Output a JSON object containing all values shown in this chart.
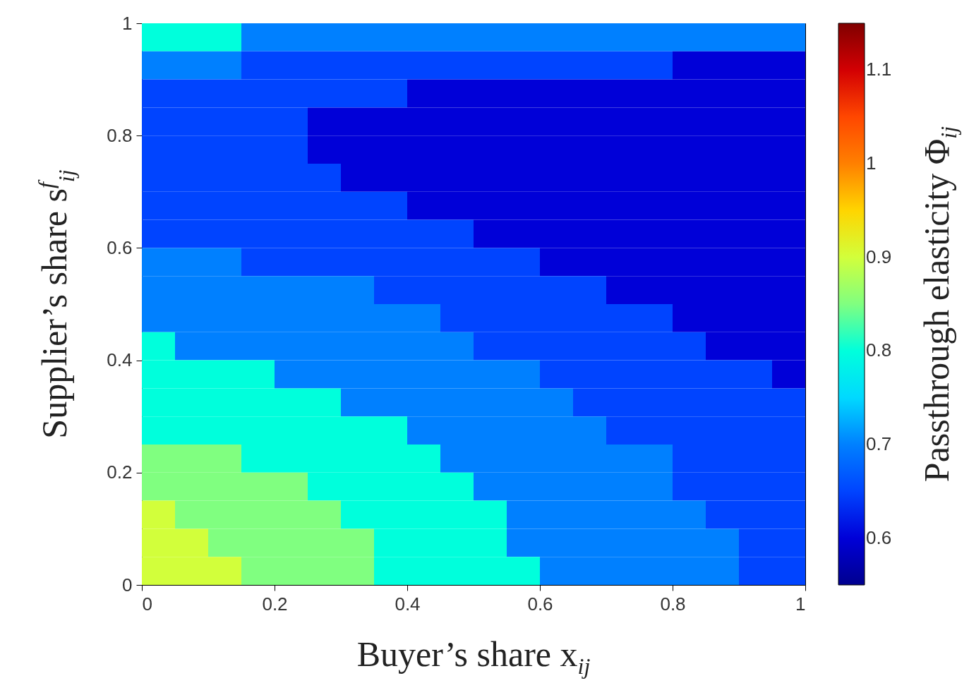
{
  "chart_data": {
    "type": "heatmap",
    "xlabel": "Buyer’s share x$_{ij}$",
    "ylabel": "Supplier’s share s$^{f}$$_{ij}$",
    "clabel": "Passthrough elasticity Φ$_{ij}$",
    "x": [
      0.025,
      0.075,
      0.125,
      0.175,
      0.225,
      0.275,
      0.325,
      0.375,
      0.425,
      0.475,
      0.525,
      0.575,
      0.625,
      0.675,
      0.725,
      0.775,
      0.825,
      0.875,
      0.925,
      0.975
    ],
    "y": [
      0.975,
      0.925,
      0.875,
      0.825,
      0.775,
      0.725,
      0.675,
      0.625,
      0.575,
      0.525,
      0.475,
      0.425,
      0.375,
      0.325,
      0.275,
      0.225,
      0.175,
      0.125,
      0.075,
      0.025
    ],
    "cells": [
      [
        0.8,
        0.8,
        0.8,
        0.7,
        0.7,
        0.7,
        0.7,
        0.7,
        0.7,
        0.7,
        0.7,
        0.7,
        0.7,
        0.7,
        0.7,
        0.7,
        0.7,
        0.7,
        0.7,
        0.7
      ],
      [
        0.7,
        0.7,
        0.7,
        0.65,
        0.65,
        0.65,
        0.65,
        0.65,
        0.65,
        0.65,
        0.65,
        0.65,
        0.65,
        0.65,
        0.65,
        0.65,
        0.6,
        0.6,
        0.6,
        0.6
      ],
      [
        0.65,
        0.65,
        0.65,
        0.65,
        0.65,
        0.65,
        0.65,
        0.65,
        0.6,
        0.6,
        0.6,
        0.6,
        0.6,
        0.6,
        0.6,
        0.6,
        0.6,
        0.6,
        0.6,
        0.6
      ],
      [
        0.65,
        0.65,
        0.65,
        0.65,
        0.65,
        0.6,
        0.6,
        0.6,
        0.6,
        0.6,
        0.6,
        0.6,
        0.6,
        0.6,
        0.6,
        0.6,
        0.6,
        0.6,
        0.6,
        0.6
      ],
      [
        0.65,
        0.65,
        0.65,
        0.65,
        0.65,
        0.6,
        0.6,
        0.6,
        0.6,
        0.6,
        0.6,
        0.6,
        0.6,
        0.6,
        0.6,
        0.6,
        0.6,
        0.6,
        0.6,
        0.6
      ],
      [
        0.65,
        0.65,
        0.65,
        0.65,
        0.65,
        0.65,
        0.6,
        0.6,
        0.6,
        0.6,
        0.6,
        0.6,
        0.6,
        0.6,
        0.6,
        0.6,
        0.6,
        0.6,
        0.6,
        0.6
      ],
      [
        0.65,
        0.65,
        0.65,
        0.65,
        0.65,
        0.65,
        0.65,
        0.65,
        0.6,
        0.6,
        0.6,
        0.6,
        0.6,
        0.6,
        0.6,
        0.6,
        0.6,
        0.6,
        0.6,
        0.6
      ],
      [
        0.65,
        0.65,
        0.65,
        0.65,
        0.65,
        0.65,
        0.65,
        0.65,
        0.65,
        0.65,
        0.6,
        0.6,
        0.6,
        0.6,
        0.6,
        0.6,
        0.6,
        0.6,
        0.6,
        0.6
      ],
      [
        0.7,
        0.7,
        0.7,
        0.65,
        0.65,
        0.65,
        0.65,
        0.65,
        0.65,
        0.65,
        0.65,
        0.65,
        0.6,
        0.6,
        0.6,
        0.6,
        0.6,
        0.6,
        0.6,
        0.6
      ],
      [
        0.7,
        0.7,
        0.7,
        0.7,
        0.7,
        0.7,
        0.7,
        0.65,
        0.65,
        0.65,
        0.65,
        0.65,
        0.65,
        0.65,
        0.6,
        0.6,
        0.6,
        0.6,
        0.6,
        0.6
      ],
      [
        0.7,
        0.7,
        0.7,
        0.7,
        0.7,
        0.7,
        0.7,
        0.7,
        0.7,
        0.65,
        0.65,
        0.65,
        0.65,
        0.65,
        0.65,
        0.65,
        0.6,
        0.6,
        0.6,
        0.6
      ],
      [
        0.8,
        0.7,
        0.7,
        0.7,
        0.7,
        0.7,
        0.7,
        0.7,
        0.7,
        0.7,
        0.65,
        0.65,
        0.65,
        0.65,
        0.65,
        0.65,
        0.65,
        0.6,
        0.6,
        0.6
      ],
      [
        0.8,
        0.8,
        0.8,
        0.8,
        0.7,
        0.7,
        0.7,
        0.7,
        0.7,
        0.7,
        0.7,
        0.7,
        0.65,
        0.65,
        0.65,
        0.65,
        0.65,
        0.65,
        0.65,
        0.6
      ],
      [
        0.8,
        0.8,
        0.8,
        0.8,
        0.8,
        0.8,
        0.7,
        0.7,
        0.7,
        0.7,
        0.7,
        0.7,
        0.7,
        0.65,
        0.65,
        0.65,
        0.65,
        0.65,
        0.65,
        0.65
      ],
      [
        0.8,
        0.8,
        0.8,
        0.8,
        0.8,
        0.8,
        0.8,
        0.8,
        0.7,
        0.7,
        0.7,
        0.7,
        0.7,
        0.7,
        0.65,
        0.65,
        0.65,
        0.65,
        0.65,
        0.65
      ],
      [
        0.85,
        0.85,
        0.85,
        0.8,
        0.8,
        0.8,
        0.8,
        0.8,
        0.8,
        0.7,
        0.7,
        0.7,
        0.7,
        0.7,
        0.7,
        0.7,
        0.65,
        0.65,
        0.65,
        0.65
      ],
      [
        0.85,
        0.85,
        0.85,
        0.85,
        0.85,
        0.8,
        0.8,
        0.8,
        0.8,
        0.8,
        0.7,
        0.7,
        0.7,
        0.7,
        0.7,
        0.7,
        0.65,
        0.65,
        0.65,
        0.65
      ],
      [
        0.9,
        0.85,
        0.85,
        0.85,
        0.85,
        0.85,
        0.8,
        0.8,
        0.8,
        0.8,
        0.8,
        0.7,
        0.7,
        0.7,
        0.7,
        0.7,
        0.7,
        0.65,
        0.65,
        0.65
      ],
      [
        0.9,
        0.9,
        0.85,
        0.85,
        0.85,
        0.85,
        0.85,
        0.8,
        0.8,
        0.8,
        0.8,
        0.7,
        0.7,
        0.7,
        0.7,
        0.7,
        0.7,
        0.7,
        0.65,
        0.65
      ],
      [
        0.9,
        0.9,
        0.9,
        0.85,
        0.85,
        0.85,
        0.85,
        0.8,
        0.8,
        0.8,
        0.8,
        0.8,
        0.7,
        0.7,
        0.7,
        0.7,
        0.7,
        0.7,
        0.65,
        0.65
      ]
    ],
    "xlim": [
      0,
      1
    ],
    "ylim": [
      0,
      1
    ],
    "xticks": [
      0,
      0.2,
      0.4,
      0.6,
      0.8,
      1
    ],
    "yticks": [
      0,
      0.2,
      0.4,
      0.6,
      0.8,
      1
    ],
    "clim": [
      0.55,
      1.15
    ],
    "cticks": [
      0.6,
      0.7,
      0.8,
      0.9,
      1,
      1.1
    ]
  }
}
